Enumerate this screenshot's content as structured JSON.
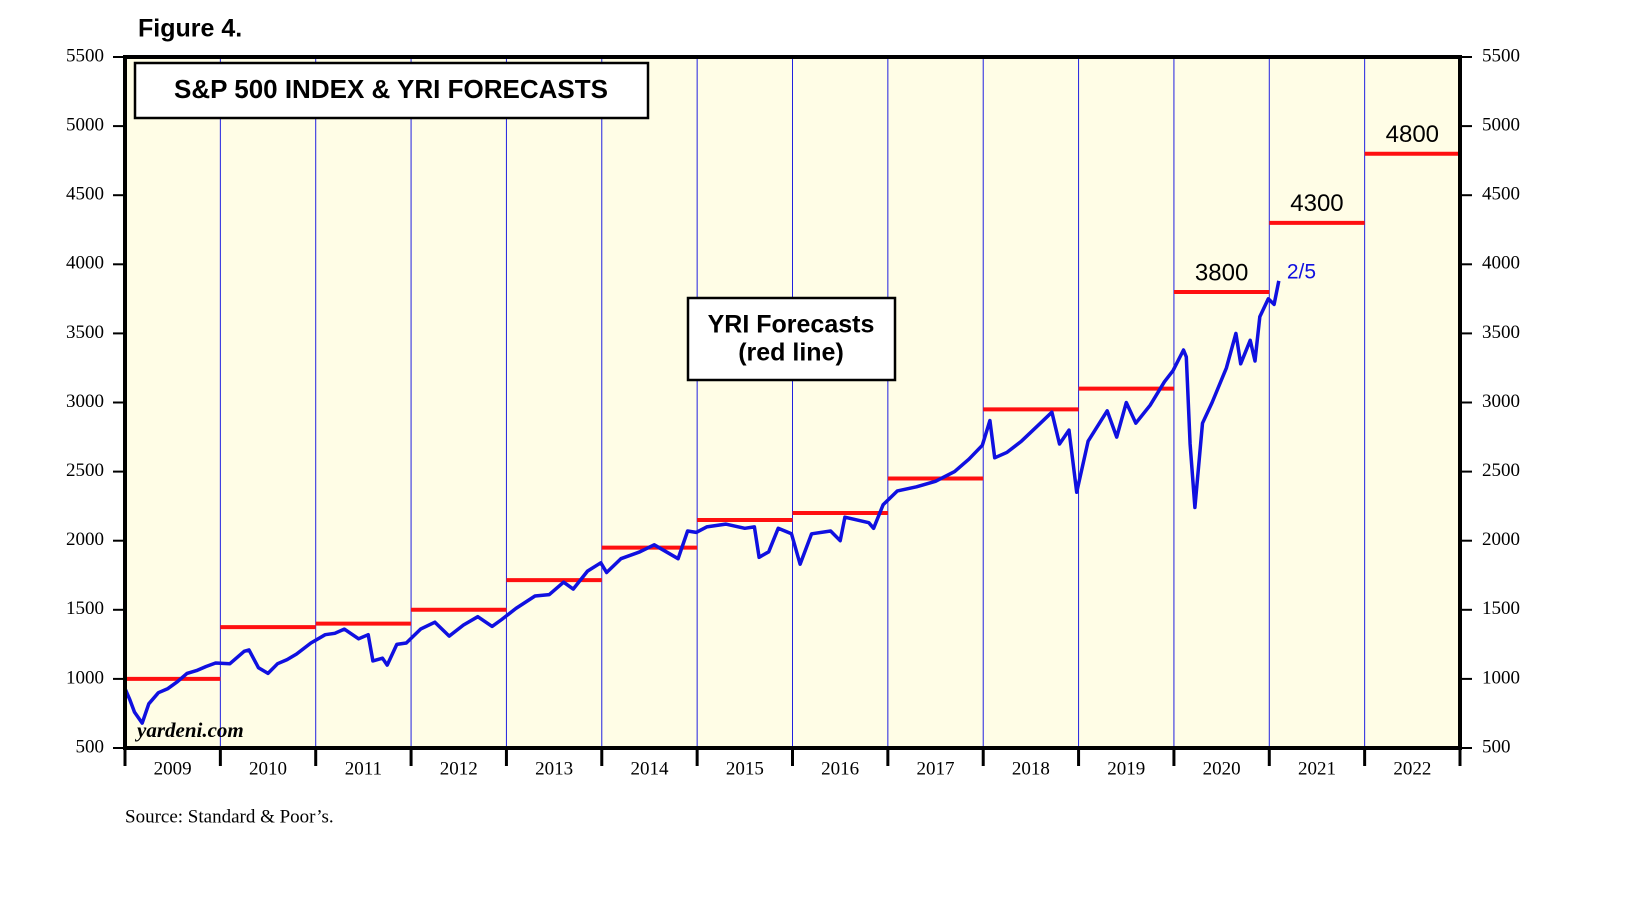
{
  "chart_data": {
    "type": "line",
    "figure_label": "Figure 4.",
    "title": "S&P 500 INDEX & YRI FORECASTS",
    "annotation_box": [
      "YRI Forecasts",
      "(red line)"
    ],
    "watermark": "yardeni.com",
    "source": "Source: Standard & Poor’s.",
    "end_label": "2/5",
    "categories": [
      "2009",
      "2010",
      "2011",
      "2012",
      "2013",
      "2014",
      "2015",
      "2016",
      "2017",
      "2018",
      "2019",
      "2020",
      "2021",
      "2022"
    ],
    "xlim": [
      2009,
      2023
    ],
    "ylim": [
      500,
      5500
    ],
    "yticks": [
      500,
      1000,
      1500,
      2000,
      2500,
      3000,
      3500,
      4000,
      4500,
      5000,
      5500
    ],
    "grid": true,
    "background": "#fffde6",
    "series": [
      {
        "color": "#1010e0",
        "x": [
          2009.0,
          2009.05,
          2009.1,
          2009.18,
          2009.25,
          2009.35,
          2009.45,
          2009.55,
          2009.65,
          2009.75,
          2009.85,
          2009.95,
          2010.1,
          2010.25,
          2010.3,
          2010.4,
          2010.5,
          2010.6,
          2010.7,
          2010.8,
          2010.95,
          2011.1,
          2011.2,
          2011.3,
          2011.45,
          2011.55,
          2011.6,
          2011.7,
          2011.75,
          2011.85,
          2011.95,
          2012.1,
          2012.25,
          2012.4,
          2012.55,
          2012.7,
          2012.85,
          2012.95,
          2013.1,
          2013.3,
          2013.45,
          2013.6,
          2013.7,
          2013.85,
          2013.99,
          2014.05,
          2014.2,
          2014.4,
          2014.55,
          2014.8,
          2014.9,
          2014.99,
          2015.1,
          2015.3,
          2015.5,
          2015.6,
          2015.65,
          2015.75,
          2015.85,
          2015.99,
          2016.08,
          2016.2,
          2016.4,
          2016.5,
          2016.55,
          2016.8,
          2016.85,
          2016.95,
          2017.1,
          2017.3,
          2017.5,
          2017.7,
          2017.85,
          2017.99,
          2018.07,
          2018.12,
          2018.25,
          2018.4,
          2018.6,
          2018.72,
          2018.8,
          2018.9,
          2018.98,
          2019.1,
          2019.3,
          2019.4,
          2019.5,
          2019.6,
          2019.75,
          2019.9,
          2019.99,
          2020.1,
          2020.13,
          2020.17,
          2020.22,
          2020.3,
          2020.4,
          2020.55,
          2020.65,
          2020.7,
          2020.8,
          2020.85,
          2020.9,
          2020.99,
          2021.05,
          2021.1
        ],
        "values": [
          930,
          850,
          760,
          680,
          820,
          900,
          930,
          980,
          1040,
          1060,
          1090,
          1115,
          1110,
          1200,
          1210,
          1080,
          1040,
          1110,
          1140,
          1180,
          1260,
          1320,
          1330,
          1360,
          1290,
          1320,
          1130,
          1150,
          1100,
          1250,
          1260,
          1360,
          1410,
          1310,
          1390,
          1450,
          1380,
          1430,
          1510,
          1600,
          1610,
          1700,
          1650,
          1780,
          1840,
          1770,
          1870,
          1920,
          1970,
          1870,
          2070,
          2060,
          2100,
          2120,
          2090,
          2100,
          1880,
          1920,
          2090,
          2050,
          1830,
          2050,
          2070,
          2000,
          2170,
          2130,
          2090,
          2260,
          2360,
          2390,
          2430,
          2500,
          2590,
          2690,
          2870,
          2600,
          2640,
          2720,
          2850,
          2930,
          2700,
          2800,
          2350,
          2720,
          2940,
          2750,
          3000,
          2850,
          2980,
          3150,
          3230,
          3380,
          3330,
          2700,
          2240,
          2850,
          3000,
          3250,
          3500,
          3280,
          3450,
          3300,
          3620,
          3750,
          3710,
          3880
        ]
      }
    ],
    "forecasts": {
      "color": "#ff1010",
      "values": [
        1000,
        1375,
        1400,
        1500,
        1715,
        1950,
        2150,
        2200,
        2450,
        2950,
        3100,
        3800,
        4300,
        4800
      ],
      "value_labels": [
        null,
        null,
        null,
        null,
        null,
        null,
        null,
        null,
        null,
        null,
        null,
        "3800",
        "4300",
        "4800"
      ]
    }
  }
}
